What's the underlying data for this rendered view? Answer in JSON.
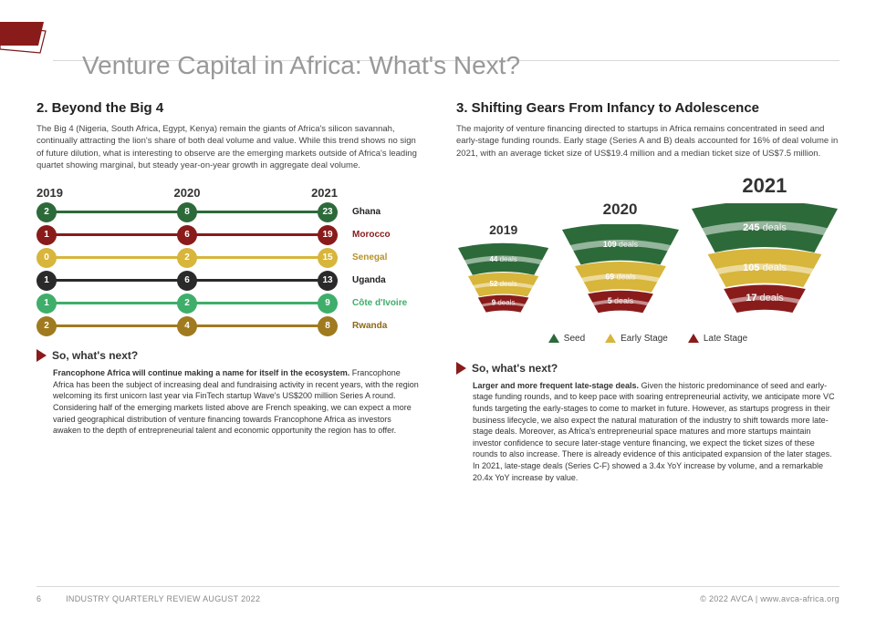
{
  "title": "Venture Capital in Africa: What's Next?",
  "corner_colors": {
    "front": "#8a1b1b",
    "back_stroke": "#7a1818"
  },
  "left": {
    "heading": "2. Beyond the Big 4",
    "intro": "The Big 4 (Nigeria, South Africa, Egypt, Kenya) remain the giants of Africa's silicon savannah, continually attracting the lion's share of both deal volume and value. While this trend shows no sign of future dilution, what is interesting to observe are the emerging markets outside of Africa's leading quartet showing marginal, but steady year-on-year growth in aggregate deal volume.",
    "years": [
      "2019",
      "2020",
      "2021"
    ],
    "rows": [
      {
        "label": "Ghana",
        "values": [
          2,
          8,
          23
        ],
        "color": "#2d6a3a",
        "label_color": "#222"
      },
      {
        "label": "Morocco",
        "values": [
          1,
          6,
          19
        ],
        "color": "#8a1b1b",
        "label_color": "#8a1b1b"
      },
      {
        "label": "Senegal",
        "values": [
          0,
          2,
          15
        ],
        "color": "#d8b53b",
        "label_color": "#b8922b"
      },
      {
        "label": "Uganda",
        "values": [
          1,
          6,
          13
        ],
        "color": "#2a2a2a",
        "label_color": "#222"
      },
      {
        "label": "Côte d'Ivoire",
        "values": [
          1,
          2,
          9
        ],
        "color": "#3fae6a",
        "label_color": "#3fae6a"
      },
      {
        "label": "Rwanda",
        "values": [
          2,
          4,
          8
        ],
        "color": "#a07a1f",
        "label_color": "#8a6818"
      }
    ],
    "so_heading": "So, what's next?",
    "so_lead": "Francophone Africa will continue making a name for itself in the ecosystem.",
    "so_body": " Francophone Africa has been the subject of increasing deal and fundraising activity in recent years, with the region welcoming its first unicorn last year via FinTech startup Wave's US$200 million Series A round. Considering half of the emerging markets listed above are French speaking, we can expect a more varied geographical distribution of venture financing towards Francophone Africa as investors awaken to the depth of entrepreneurial talent and economic opportunity the region has to offer."
  },
  "right": {
    "heading": "3. Shifting Gears From Infancy to Adolescence",
    "intro": "The majority of venture financing directed to startups in Africa remains concentrated in seed and early-stage funding rounds. Early stage (Series A and B) deals accounted for 16% of deal volume in 2021, with an average ticket size of US$19.4 million and a median ticket size of US$7.5 million.",
    "deals_word": "deals",
    "stage_colors": {
      "seed": "#2d6a3a",
      "early": "#d8b53b",
      "late": "#8a1b1b"
    },
    "funnels": [
      {
        "year": "2019",
        "year_fs": 14,
        "scale": 0.62,
        "seed": 44,
        "early": 52,
        "late": 9
      },
      {
        "year": "2020",
        "year_fs": 17,
        "scale": 0.8,
        "seed": 109,
        "early": 69,
        "late": 5
      },
      {
        "year": "2021",
        "year_fs": 22,
        "scale": 1.0,
        "seed": 245,
        "early": 105,
        "late": 17
      }
    ],
    "legend": [
      {
        "label": "Seed",
        "key": "seed"
      },
      {
        "label": "Early Stage",
        "key": "early"
      },
      {
        "label": "Late Stage",
        "key": "late"
      }
    ],
    "so_heading": "So, what's next?",
    "so_lead": "Larger and more frequent late-stage deals.",
    "so_body": " Given the historic predominance of seed and early-stage funding rounds, and to keep pace with soaring entrepreneurial activity, we anticipate more VC funds targeting the early-stages to come to market in future. However, as startups progress in their business lifecycle, we also expect the natural maturation of the industry to shift towards more late-stage deals. Moreover, as Africa's entrepreneurial space matures and more startups maintain investor confidence to secure later-stage venture financing, we expect the ticket sizes of these rounds to also increase. There is already evidence of this anticipated expansion of the later stages. In 2021, late-stage deals (Series C-F) showed a 3.4x YoY increase by volume, and a remarkable 20.4x YoY increase by value."
  },
  "footer": {
    "page": "6",
    "pub": "INDUSTRY QUARTERLY REVIEW AUGUST 2022",
    "copyright": "© 2022 AVCA | www.avca-africa.org"
  }
}
